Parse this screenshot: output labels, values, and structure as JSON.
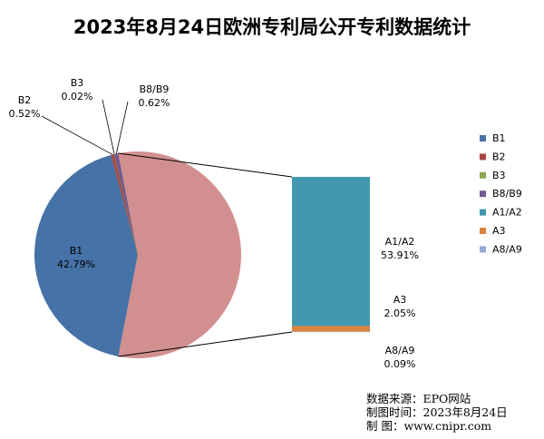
{
  "chart_data": {
    "type": "pie",
    "title": "2023年8月24日欧洲专利局公开专利数据统计",
    "categories": [
      "B1",
      "B2",
      "B3",
      "B8/B9",
      "A1/A2",
      "A3",
      "A8/A9"
    ],
    "values": [
      42.79,
      0.52,
      0.02,
      0.62,
      53.91,
      2.05,
      0.09
    ],
    "labels": [
      "42.79%",
      "0.52%",
      "0.02%",
      "0.62%",
      "53.91%",
      "2.05%",
      "0.09%"
    ],
    "colors": [
      "#4572A7",
      "#AA4643",
      "#89A54E",
      "#71588F",
      "#4198AF",
      "#DB843D",
      "#93A9CF"
    ],
    "pie_main_color": "#D28F8F",
    "bar_of_pie_categories": [
      "A1/A2",
      "A3",
      "A8/A9"
    ],
    "legend_position": "right"
  },
  "footer": {
    "source_label": "数据来源：",
    "source_value": "EPO网站",
    "date_label": "制图时间：",
    "date_value": "2023年8月24日",
    "map_label": "制      图：",
    "map_value": "www.cnipr.com"
  }
}
